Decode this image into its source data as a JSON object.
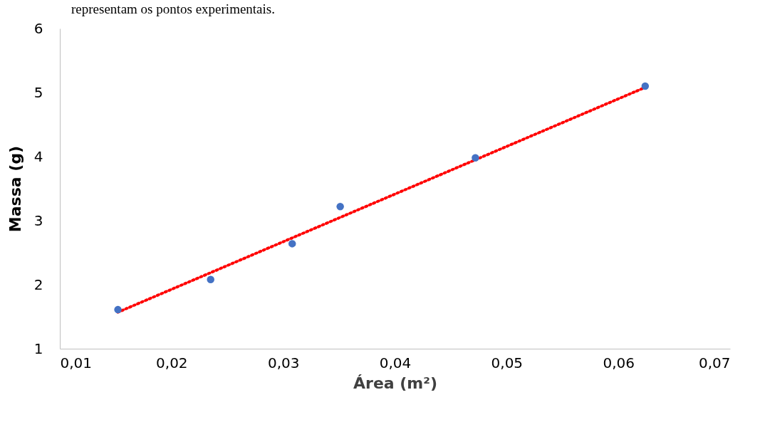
{
  "chart_data": {
    "type": "scatter",
    "xlabel": "Área (m²)",
    "ylabel": "Massa (g)",
    "annotations": [
      "representam os pontos experimentais."
    ],
    "xlim": [
      0.01,
      0.07
    ],
    "xticks": [
      {
        "value": 0.01,
        "label": "0,01"
      },
      {
        "value": 0.02,
        "label": "0,02"
      },
      {
        "value": 0.03,
        "label": "0,03"
      },
      {
        "value": 0.04,
        "label": "0,04"
      },
      {
        "value": 0.05,
        "label": "0,05"
      },
      {
        "value": 0.06,
        "label": "0,06"
      },
      {
        "value": 0.07,
        "label": "0,07"
      }
    ],
    "ylim": [
      1,
      6
    ],
    "yticks": [
      1,
      2,
      3,
      4,
      5,
      6
    ],
    "grid": false,
    "series": [
      {
        "marker": "circle",
        "color": "#4472c4",
        "x": [
          0.0152,
          0.0235,
          0.0308,
          0.0351,
          0.0472,
          0.0624
        ],
        "values": [
          1.61,
          2.08,
          2.64,
          3.22,
          3.98,
          5.1
        ]
      },
      {
        "type": "line",
        "color": "#ff0000",
        "line_style": "dotted",
        "x": [
          0.0152,
          0.0624
        ],
        "values": [
          1.57,
          5.08
        ]
      }
    ]
  }
}
